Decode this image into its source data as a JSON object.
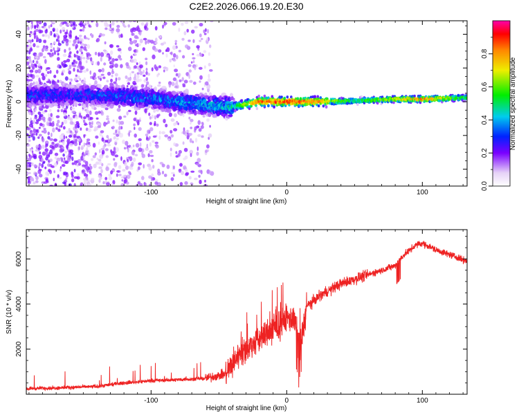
{
  "figure_title": "C2E2.2026.066.19.20.E30",
  "chart_data": [
    {
      "type": "heatmap",
      "title": "C2E2.2026.066.19.20.E30",
      "xlabel": "Height of straight line (km)",
      "ylabel": "Frequency (Hz)",
      "xlim": [
        -192,
        133
      ],
      "ylim": [
        -50,
        48
      ],
      "xticks": [
        -100,
        0,
        100
      ],
      "xtick_labels": [
        "-100",
        "0",
        "100"
      ],
      "yticks": [
        40,
        20,
        0,
        -20,
        -40
      ],
      "ytick_labels": [
        "40",
        "20",
        "0",
        "-20",
        "-40"
      ],
      "colorbar": {
        "label": "Normalized spectral amplitude",
        "range": [
          0,
          1
        ],
        "ticks": [
          0.0,
          0.2,
          0.4,
          0.6,
          0.8
        ],
        "tick_labels": [
          "0.0",
          "0.2",
          "0.4",
          "0.6",
          "0.8"
        ]
      },
      "ridge": {
        "description_points_x": [
          -150,
          -120,
          -100,
          -80,
          -60,
          -40,
          -20,
          0,
          20,
          50,
          80,
          100,
          133
        ],
        "center_frequency_hz": [
          4,
          3,
          2,
          0,
          -2,
          -3,
          0,
          0,
          0,
          0.5,
          1.5,
          1.5,
          2.5
        ],
        "peak_amplitude": [
          0.35,
          0.38,
          0.4,
          0.42,
          0.45,
          0.5,
          0.92,
          0.95,
          0.9,
          0.55,
          0.75,
          0.92,
          0.55
        ]
      }
    },
    {
      "type": "line",
      "xlabel": "Height of straight line (km)",
      "ylabel": "SNR (10 * v/v)",
      "xlim": [
        -192,
        133
      ],
      "ylim": [
        0,
        7300
      ],
      "xticks": [
        -100,
        0,
        100
      ],
      "xtick_labels": [
        "-100",
        "0",
        "100"
      ],
      "yticks": [
        2000,
        4000,
        6000
      ],
      "ytick_labels": [
        "2000",
        "4000",
        "6000"
      ],
      "series": [
        {
          "name": "SNR",
          "color": "#ee2222",
          "x": [
            -192,
            -160,
            -140,
            -120,
            -100,
            -80,
            -60,
            -45,
            -35,
            -25,
            -15,
            -5,
            0,
            5,
            10,
            15,
            25,
            40,
            60,
            80,
            85,
            95,
            100,
            110,
            120,
            133
          ],
          "y": [
            250,
            300,
            350,
            500,
            600,
            650,
            700,
            900,
            1800,
            2200,
            2700,
            3100,
            3400,
            3300,
            2200,
            3900,
            4400,
            4900,
            5300,
            5700,
            6100,
            6600,
            6700,
            6400,
            6200,
            5900
          ]
        }
      ]
    }
  ]
}
